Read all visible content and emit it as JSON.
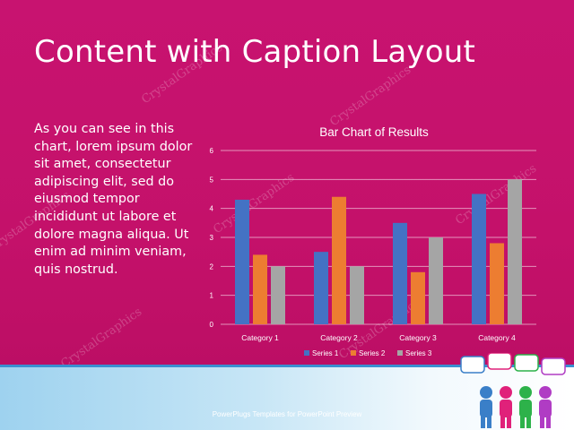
{
  "slide": {
    "title": "Content with Caption Layout",
    "body": "As you can see in this chart, lorem ipsum dolor sit amet, consectetur adipiscing elit, sed do eiusmod tempor incididunt ut labore et dolore magna aliqua. Ut enim ad minim veniam, quis nostrud.",
    "footer": "PowerPlugs Templates for PowerPoint Preview",
    "watermark": "CrystalGraphics"
  },
  "colors": {
    "background": "#c8146e",
    "series1": "#4472c4",
    "series2": "#ed7d31",
    "series3": "#a5a5a5"
  },
  "chart_data": {
    "type": "bar",
    "title": "Bar Chart of Results",
    "categories": [
      "Category 1",
      "Category 2",
      "Category 3",
      "Category 4"
    ],
    "series": [
      {
        "name": "Series 1",
        "values": [
          4.3,
          2.5,
          3.5,
          4.5
        ]
      },
      {
        "name": "Series 2",
        "values": [
          2.4,
          4.4,
          1.8,
          2.8
        ]
      },
      {
        "name": "Series 3",
        "values": [
          2,
          2,
          3,
          5
        ]
      }
    ],
    "ylim": [
      0,
      6
    ],
    "yticks": [
      "0",
      "1",
      "2",
      "3",
      "4",
      "5",
      "6"
    ],
    "grid": true,
    "legend": "bottom"
  }
}
